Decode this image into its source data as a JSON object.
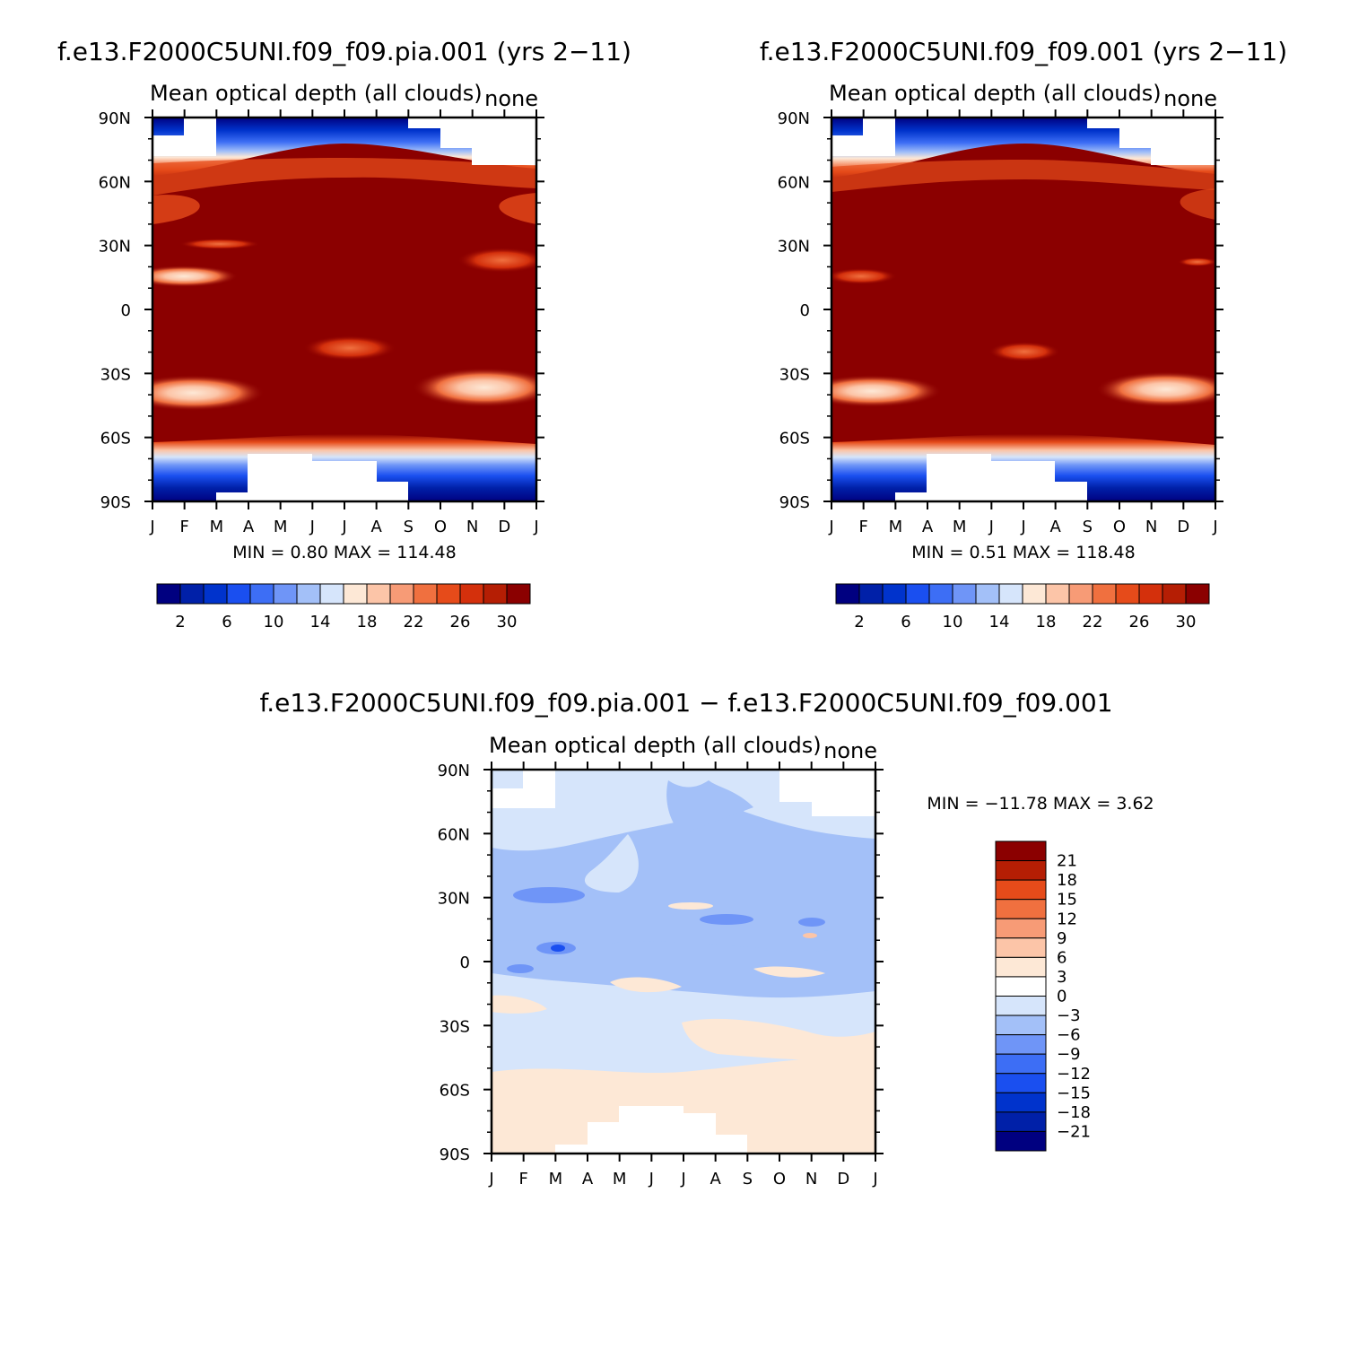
{
  "panels": [
    {
      "title": "f.e13.F2000C5UNI.f09_f09.pia.001 (yrs 2−11)",
      "subtitle_left": "Mean optical depth (all clouds)",
      "subtitle_right": "none",
      "minmax": "MIN =    0.80  MAX =  114.48"
    },
    {
      "title": "f.e13.F2000C5UNI.f09_f09.001 (yrs 2−11)",
      "subtitle_left": "Mean optical depth (all clouds)",
      "subtitle_right": "none",
      "minmax": "MIN =    0.51  MAX =  118.48"
    },
    {
      "title": "f.e13.F2000C5UNI.f09_f09.pia.001  −  f.e13.F2000C5UNI.f09_f09.001",
      "subtitle_left": "Mean optical depth (all clouds)",
      "subtitle_right": "none",
      "minmax": "MIN = −11.78  MAX =     3.62"
    }
  ],
  "chart_data": [
    {
      "type": "heatmap",
      "title": "f.e13.F2000C5UNI.f09_f09.pia.001 (yrs 2−11)",
      "subtitle": "Mean optical depth (all clouds)",
      "x_ticks": [
        "J",
        "F",
        "M",
        "A",
        "M",
        "J",
        "J",
        "A",
        "S",
        "O",
        "N",
        "D",
        "J"
      ],
      "y_ticks": [
        "90N",
        "60N",
        "30N",
        "0",
        "30S",
        "60S",
        "90S"
      ],
      "ylim": [
        -90,
        90
      ],
      "min": 0.8,
      "max": 114.48,
      "colorbar": {
        "orientation": "horizontal",
        "colors": [
          "#000080",
          "#0020a8",
          "#0033cc",
          "#1a4ff0",
          "#3d6ef5",
          "#6f95f7",
          "#a3c0f8",
          "#d6e5fb",
          "#fde8d6",
          "#fcc5a8",
          "#f79b76",
          "#f0703f",
          "#e64b1a",
          "#d4300c",
          "#b51e04",
          "#8b0000"
        ],
        "labels": [
          "2",
          "6",
          "10",
          "14",
          "18",
          "22",
          "26",
          "30"
        ]
      }
    },
    {
      "type": "heatmap",
      "title": "f.e13.F2000C5UNI.f09_f09.001 (yrs 2−11)",
      "subtitle": "Mean optical depth (all clouds)",
      "x_ticks": [
        "J",
        "F",
        "M",
        "A",
        "M",
        "J",
        "J",
        "A",
        "S",
        "O",
        "N",
        "D",
        "J"
      ],
      "y_ticks": [
        "90N",
        "60N",
        "30N",
        "0",
        "30S",
        "60S",
        "90S"
      ],
      "ylim": [
        -90,
        90
      ],
      "min": 0.51,
      "max": 118.48,
      "colorbar": {
        "orientation": "horizontal",
        "colors": [
          "#000080",
          "#0020a8",
          "#0033cc",
          "#1a4ff0",
          "#3d6ef5",
          "#6f95f7",
          "#a3c0f8",
          "#d6e5fb",
          "#fde8d6",
          "#fcc5a8",
          "#f79b76",
          "#f0703f",
          "#e64b1a",
          "#d4300c",
          "#b51e04",
          "#8b0000"
        ],
        "labels": [
          "2",
          "6",
          "10",
          "14",
          "18",
          "22",
          "26",
          "30"
        ]
      }
    },
    {
      "type": "heatmap",
      "title": "f.e13.F2000C5UNI.f09_f09.pia.001  −  f.e13.F2000C5UNI.f09_f09.001",
      "subtitle": "Mean optical depth (all clouds)",
      "x_ticks": [
        "J",
        "F",
        "M",
        "A",
        "M",
        "J",
        "J",
        "A",
        "S",
        "O",
        "N",
        "D",
        "J"
      ],
      "y_ticks": [
        "90N",
        "60N",
        "30N",
        "0",
        "30S",
        "60S",
        "90S"
      ],
      "ylim": [
        -90,
        90
      ],
      "min": -11.78,
      "max": 3.62,
      "colorbar": {
        "orientation": "vertical",
        "colors": [
          "#8b0000",
          "#b51e04",
          "#e64b1a",
          "#f0703f",
          "#f79b76",
          "#fcc5a8",
          "#fde8d6",
          "#ffffff",
          "#d6e5fb",
          "#a3c0f8",
          "#6f95f7",
          "#3d6ef5",
          "#1a4ff0",
          "#0033cc",
          "#0020a8",
          "#000080"
        ],
        "labels": [
          "21",
          "18",
          "15",
          "12",
          "9",
          "6",
          "3",
          "0",
          "−3",
          "−6",
          "−9",
          "−12",
          "−15",
          "−18",
          "−21"
        ]
      }
    }
  ]
}
